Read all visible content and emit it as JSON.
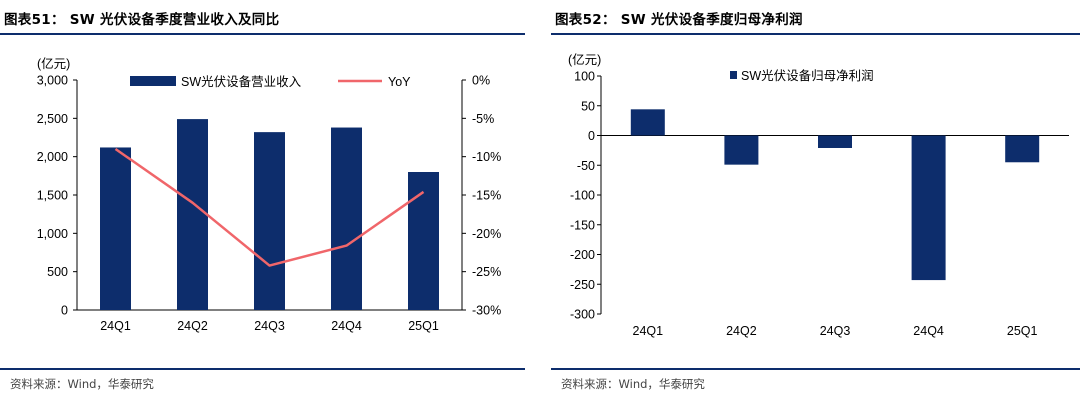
{
  "left_panel": {
    "title": "图表51：  SW 光伏设备季度营业收入及同比",
    "source": "资料来源：Wind，华泰研究"
  },
  "right_panel": {
    "title": "图表52：  SW 光伏设备季度归母净利润",
    "source": "资料来源：Wind，华泰研究"
  },
  "colors": {
    "bar": "#0d2d6c",
    "line": "#f0666a",
    "rule": "#0d2d6c"
  },
  "chart_data": [
    {
      "type": "bar",
      "categories": [
        "24Q1",
        "24Q2",
        "24Q3",
        "24Q4",
        "25Q1"
      ],
      "series": [
        {
          "name": "SW光伏设备营业收入",
          "type": "bar",
          "axis": "left",
          "values": [
            2120,
            2490,
            2320,
            2380,
            1800
          ]
        },
        {
          "name": "YoY",
          "type": "line",
          "axis": "right",
          "values": [
            -9.0,
            -16.0,
            -24.2,
            -21.6,
            -14.6
          ]
        }
      ],
      "unit_label": "(亿元)",
      "ylim_left": [
        0,
        3000
      ],
      "yticks_left": [
        "0",
        "500",
        "1,000",
        "1,500",
        "2,000",
        "2,500",
        "3,000"
      ],
      "ytick_values_left": [
        0,
        500,
        1000,
        1500,
        2000,
        2500,
        3000
      ],
      "ylim_right": [
        -30,
        0
      ],
      "yticks_right": [
        "-30%",
        "-25%",
        "-20%",
        "-15%",
        "-10%",
        "-5%",
        "0%"
      ],
      "ytick_values_right": [
        -30,
        -25,
        -20,
        -15,
        -10,
        -5,
        0
      ],
      "legend_position": "top",
      "grid": false
    },
    {
      "type": "bar",
      "categories": [
        "24Q1",
        "24Q2",
        "24Q3",
        "24Q4",
        "25Q1"
      ],
      "series": [
        {
          "name": "SW光伏设备归母净利润",
          "values": [
            44,
            -49,
            -21,
            -243,
            -45
          ]
        }
      ],
      "unit_label": "(亿元)",
      "ylim": [
        -300,
        100
      ],
      "yticks": [
        "-300",
        "-250",
        "-200",
        "-150",
        "-100",
        "-50",
        "0",
        "50",
        "100"
      ],
      "ytick_values": [
        -300,
        -250,
        -200,
        -150,
        -100,
        -50,
        0,
        50,
        100
      ],
      "legend_position": "top-left",
      "grid": false
    }
  ]
}
